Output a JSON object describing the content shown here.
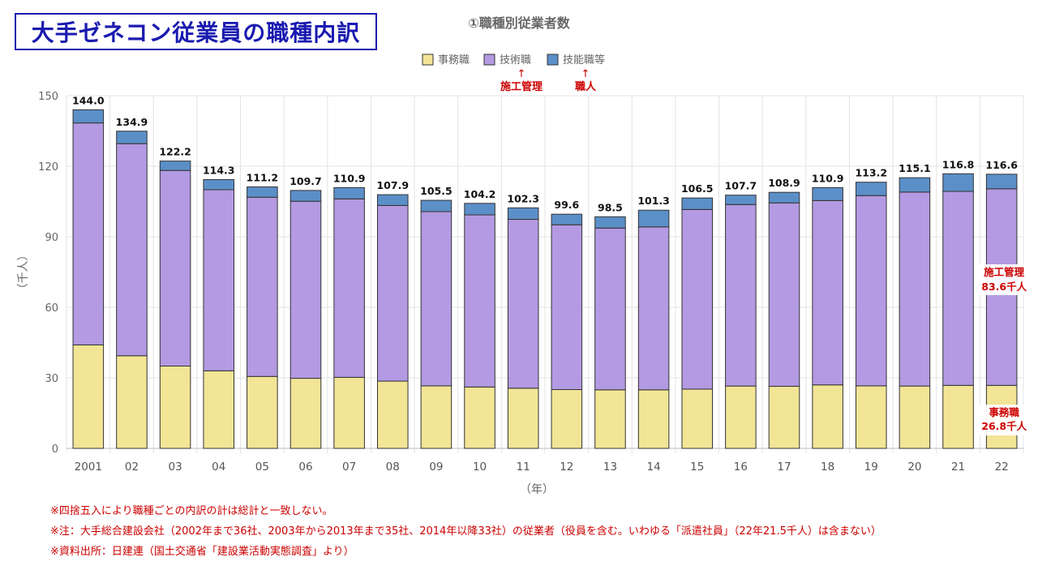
{
  "main_title": "大手ゼネコン従業員の職種内訳",
  "chart_data": {
    "type": "bar",
    "stacked": true,
    "title": "①職種別従業者数",
    "xlabel": "（年）",
    "ylabel": "（千人）",
    "ylim": [
      0,
      150
    ],
    "yticks": [
      0,
      30,
      60,
      90,
      120,
      150
    ],
    "grid": true,
    "legend_position": "top",
    "categories": [
      "2001",
      "02",
      "03",
      "04",
      "05",
      "06",
      "07",
      "08",
      "09",
      "10",
      "11",
      "12",
      "13",
      "14",
      "15",
      "16",
      "17",
      "18",
      "19",
      "20",
      "21",
      "22"
    ],
    "series": [
      {
        "name": "事務職",
        "color": "#f2e596",
        "values": [
          44.0,
          39.4,
          35.0,
          33.0,
          30.6,
          29.8,
          30.2,
          28.6,
          26.6,
          26.1,
          25.6,
          25.0,
          24.9,
          24.9,
          25.2,
          26.5,
          26.4,
          27.0,
          26.6,
          26.5,
          26.8,
          26.8
        ]
      },
      {
        "name": "技術職",
        "color": "#b39ae2",
        "values": [
          94.4,
          90.2,
          83.2,
          77.0,
          76.2,
          75.3,
          75.9,
          74.7,
          74.1,
          73.2,
          71.8,
          70.1,
          68.8,
          69.3,
          76.4,
          77.2,
          78.0,
          78.4,
          80.9,
          82.5,
          82.5,
          83.6
        ]
      },
      {
        "name": "技能職等",
        "color": "#5b8fc8",
        "values": [
          5.6,
          5.3,
          4.0,
          4.3,
          4.4,
          4.6,
          4.8,
          4.6,
          4.8,
          4.9,
          4.9,
          4.5,
          4.8,
          7.1,
          4.9,
          4.0,
          4.5,
          5.5,
          5.7,
          6.1,
          7.5,
          6.2
        ]
      }
    ],
    "totals": [
      "144.0",
      "134.9",
      "122.2",
      "114.3",
      "111.2",
      "109.7",
      "110.9",
      "107.9",
      "105.5",
      "104.2",
      "102.3",
      "99.6",
      "98.5",
      "101.3",
      "106.5",
      "107.7",
      "108.9",
      "110.9",
      "113.2",
      "115.1",
      "116.8",
      "116.6"
    ],
    "legend_annotations": [
      {
        "series": "技術職",
        "arrow": "↑",
        "text": "施工管理"
      },
      {
        "series": "技能職等",
        "arrow": "↑",
        "text": "職人"
      }
    ],
    "side_annotations": [
      {
        "series": "技術職",
        "line1": "施工管理",
        "line2": "83.6千人"
      },
      {
        "series": "事務職",
        "line1": "事務職",
        "line2": "26.8千人"
      }
    ]
  },
  "notes": [
    "※四捨五入により職種ごとの内訳の計は総計と一致しない。",
    "※注：大手総合建設会社（2002年まで36社、2003年から2013年まで35社、2014年以降33社）の従業者（役員を含む。いわゆる「派遣社員」（22年21.5千人）は含まない）",
    "※資料出所：日建連（国土交通省「建設業活動実態調査」より）"
  ]
}
